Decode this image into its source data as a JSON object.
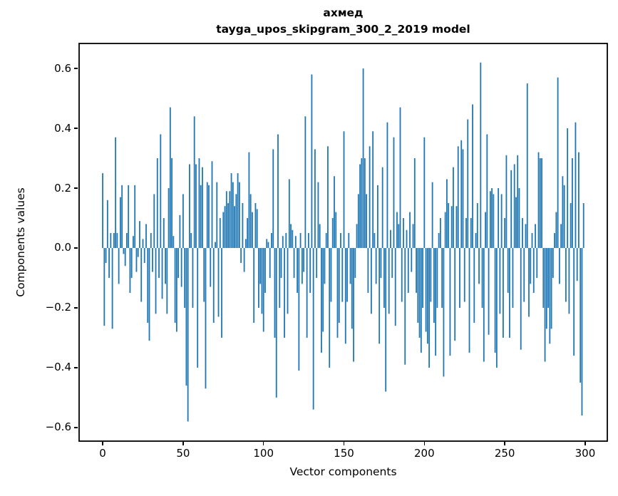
{
  "figure": {
    "title": "ахмед",
    "subtitle": "tayga_upos_skipgram_300_2_2019 model"
  },
  "axes": {
    "xlabel": "Vector components",
    "ylabel": "Components values"
  },
  "colors": {
    "bar": "#1f77b4",
    "axis": "#000000",
    "background": "#ffffff"
  },
  "chart_data": {
    "type": "bar",
    "title": "ахмед",
    "subtitle": "tayga_upos_skipgram_300_2_2019 model",
    "xlabel": "Vector components",
    "ylabel": "Components values",
    "bar_color": "#1f77b4",
    "grid": false,
    "legend": null,
    "x_start": 0,
    "bar_width_data_units": 0.8,
    "xlim": [
      -15.1,
      314.2
    ],
    "ylim": [
      -0.648,
      0.686
    ],
    "xticks": [
      0,
      50,
      100,
      150,
      200,
      250,
      300
    ],
    "xtick_labels": [
      "0",
      "50",
      "100",
      "150",
      "200",
      "250",
      "300"
    ],
    "yticks": [
      0.6,
      0.4,
      0.2,
      0.0,
      -0.2,
      -0.4,
      -0.6
    ],
    "ytick_labels": [
      "0.6",
      "0.4",
      "0.2",
      "0.0",
      "−0.2",
      "−0.4",
      "−0.6"
    ],
    "values": [
      0.25,
      -0.26,
      -0.05,
      0.16,
      -0.1,
      0.05,
      -0.27,
      0.05,
      0.37,
      0.05,
      -0.12,
      0.17,
      0.21,
      -0.02,
      -0.06,
      0.05,
      0.21,
      -0.15,
      -0.1,
      0.04,
      0.21,
      -0.08,
      -0.03,
      0.09,
      -0.18,
      0.03,
      -0.05,
      0.08,
      -0.25,
      -0.31,
      0.05,
      -0.08,
      0.18,
      -0.22,
      0.3,
      -0.1,
      0.38,
      -0.17,
      0.1,
      -0.12,
      -0.22,
      0.2,
      0.47,
      0.3,
      0.04,
      -0.25,
      -0.28,
      -0.1,
      0.11,
      -0.13,
      0.18,
      -0.2,
      -0.46,
      -0.58,
      0.28,
      0.05,
      -0.2,
      0.44,
      0.28,
      -0.4,
      0.3,
      0.21,
      0.27,
      -0.18,
      -0.47,
      0.22,
      0.21,
      -0.13,
      0.29,
      -0.25,
      0.02,
      0.22,
      -0.23,
      0.1,
      -0.3,
      0.12,
      0.14,
      0.19,
      0.15,
      0.19,
      0.25,
      0.22,
      0.14,
      0.18,
      0.25,
      0.22,
      -0.05,
      0.15,
      -0.08,
      0.03,
      0.1,
      0.32,
      0.18,
      0.12,
      -0.25,
      0.15,
      0.13,
      -0.2,
      -0.12,
      -0.22,
      -0.28,
      -0.15,
      0.03,
      0.02,
      -0.1,
      0.05,
      0.33,
      -0.3,
      -0.5,
      0.38,
      -0.2,
      -0.1,
      0.04,
      -0.3,
      0.05,
      -0.22,
      0.23,
      0.08,
      0.06,
      -0.1,
      0.04,
      -0.15,
      -0.41,
      0.05,
      -0.12,
      -0.08,
      0.44,
      -0.3,
      0.05,
      -0.15,
      0.58,
      -0.54,
      0.33,
      -0.1,
      0.22,
      0.08,
      -0.35,
      -0.28,
      -0.12,
      0.05,
      0.34,
      -0.4,
      -0.18,
      0.1,
      0.24,
      0.12,
      -0.3,
      -0.25,
      0.05,
      -0.18,
      0.39,
      -0.32,
      -0.18,
      0.05,
      -0.12,
      -0.27,
      -0.38,
      -0.1,
      0.08,
      0.18,
      0.28,
      0.3,
      0.6,
      0.3,
      0.18,
      -0.15,
      0.34,
      -0.22,
      0.39,
      0.05,
      -0.12,
      0.21,
      -0.32,
      -0.1,
      0.27,
      -0.2,
      -0.48,
      0.42,
      -0.22,
      0.06,
      -0.1,
      0.37,
      -0.26,
      0.12,
      0.08,
      0.47,
      -0.18,
      0.1,
      -0.39,
      0.06,
      -0.15,
      0.12,
      -0.08,
      0.08,
      0.3,
      -0.15,
      -0.25,
      -0.3,
      -0.35,
      -0.2,
      0.37,
      -0.28,
      -0.32,
      -0.4,
      -0.18,
      0.22,
      -0.25,
      -0.36,
      -0.2,
      0.05,
      0.1,
      -0.2,
      -0.43,
      0.12,
      0.23,
      0.15,
      -0.36,
      0.14,
      0.27,
      -0.31,
      0.14,
      0.34,
      -0.2,
      0.36,
      0.33,
      -0.18,
      0.1,
      0.43,
      -0.35,
      0.1,
      0.48,
      -0.25,
      0.05,
      0.15,
      -0.12,
      0.62,
      -0.2,
      -0.38,
      0.12,
      0.38,
      -0.29,
      0.19,
      0.2,
      0.18,
      -0.35,
      -0.4,
      0.2,
      -0.22,
      0.18,
      -0.3,
      0.1,
      0.31,
      -0.15,
      -0.3,
      0.26,
      -0.2,
      0.28,
      0.17,
      0.31,
      0.2,
      -0.34,
      0.1,
      -0.18,
      0.08,
      0.55,
      -0.23,
      -0.12,
      0.05,
      -0.15,
      0.08,
      -0.1,
      0.32,
      0.3,
      0.3,
      -0.2,
      -0.38,
      -0.27,
      -0.2,
      -0.32,
      -0.27,
      -0.1,
      0.05,
      0.12,
      0.57,
      -0.12,
      0.08,
      0.24,
      0.21,
      -0.18,
      0.4,
      -0.22,
      0.15,
      0.3,
      -0.36,
      0.42,
      -0.11,
      0.32,
      -0.45,
      -0.56,
      0.15
    ]
  }
}
